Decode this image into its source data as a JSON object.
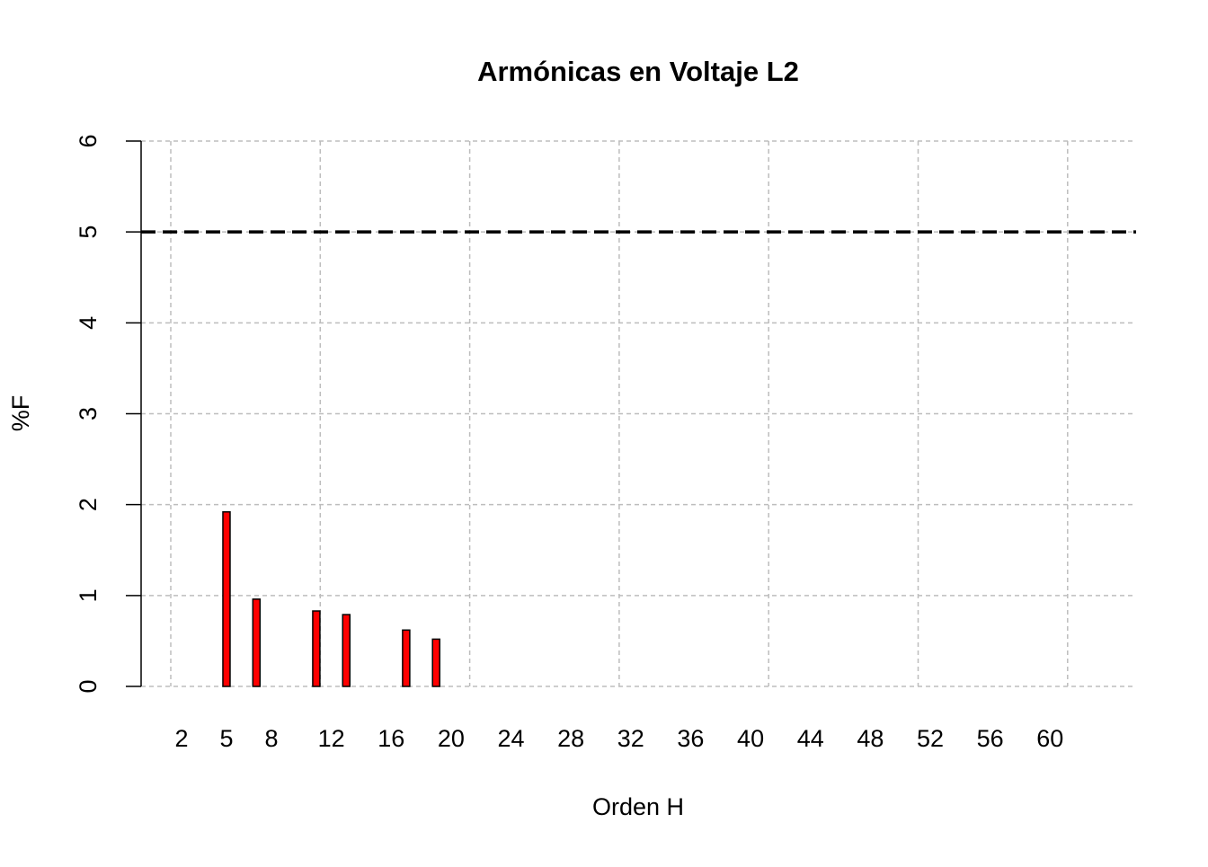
{
  "chart_data": {
    "type": "bar",
    "title": "Armónicas en Voltaje L2",
    "x_label": "Orden H",
    "y_label": "%F",
    "categories": [
      "2",
      null,
      null,
      "5",
      null,
      null,
      "8",
      null,
      null,
      null,
      "12",
      null,
      null,
      null,
      "16",
      null,
      null,
      null,
      "20",
      null,
      null,
      null,
      "24",
      null,
      null,
      null,
      "28",
      null,
      null,
      null,
      "32",
      null,
      null,
      null,
      "36",
      null,
      null,
      null,
      "40",
      null,
      null,
      null,
      "44",
      null,
      null,
      null,
      "48",
      null,
      null,
      null,
      "52",
      null,
      null,
      null,
      "56",
      null,
      null,
      null,
      "60",
      null,
      null,
      null
    ],
    "values": [
      0,
      0,
      0,
      1.92,
      0,
      0.96,
      0,
      0,
      0,
      0.83,
      0,
      0.79,
      0,
      0,
      0,
      0.62,
      0,
      0.52,
      0,
      0,
      0,
      0,
      0,
      0,
      0,
      0,
      0,
      0,
      0,
      0,
      0,
      0,
      0,
      0,
      0,
      0,
      0,
      0,
      0,
      0,
      0,
      0,
      0,
      0,
      0,
      0,
      0,
      0,
      0,
      0,
      0,
      0,
      0,
      0,
      0,
      0,
      0,
      0,
      0,
      0,
      0,
      0
    ],
    "color": "#ff0000",
    "ylim": [
      0,
      6
    ],
    "yticks": [
      0,
      1,
      2,
      3,
      4,
      5,
      6
    ],
    "grid": true,
    "hline": 5
  }
}
